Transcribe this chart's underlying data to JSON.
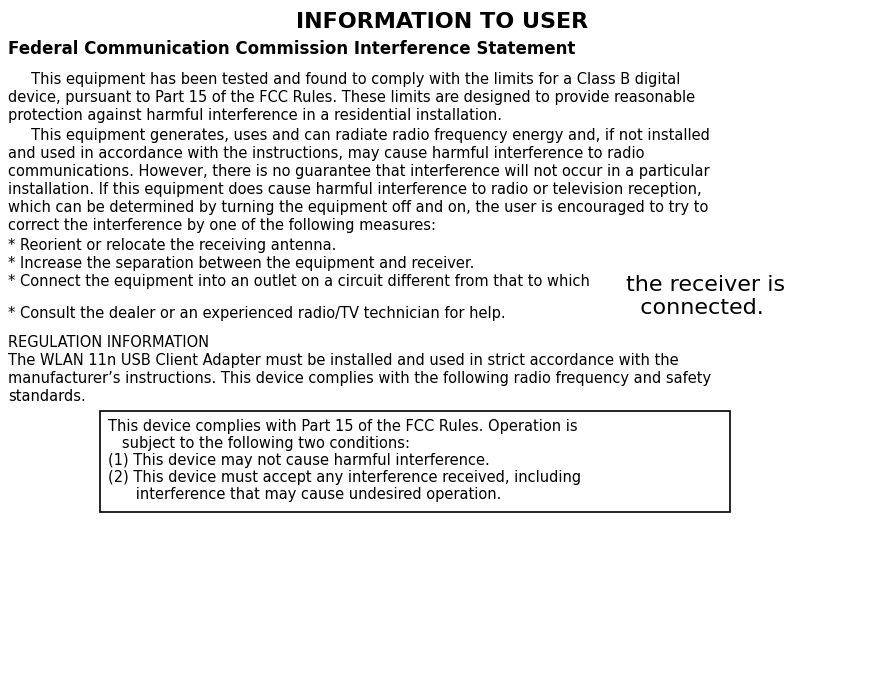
{
  "title": "INFORMATION TO USER",
  "subtitle": "Federal Communication Commission Interference Statement",
  "para1_indent": "     This equipment has been tested and found to comply with the limits for a Class B digital device, pursuant to Part 15 of the FCC Rules. These limits are designed to provide reasonable protection against harmful interference in a residential installation.",
  "para2_indent": "     This equipment generates, uses and can radiate radio frequency energy and, if not installed and used in accordance with the instructions, may cause harmful interference to radio communications. However, there is no guarantee that interference will not occur in a particular installation. If this equipment does cause harmful interference to radio or television reception, which can be determined by turning the equipment off and on, the user is encouraged to try to correct the interference by one of the following measures:",
  "bullet1": "* Reorient or relocate the receiving antenna.",
  "bullet2": "* Increase the separation between the equipment and receiver.",
  "bullet3_normal": "* Connect the equipment into an outlet on a circuit different from that to which ",
  "bullet3_large": "the receiver is\n  connected.",
  "bullet4": "* Consult the dealer or an experienced radio/TV technician for help.",
  "reg_header": "REGULATION INFORMATION",
  "reg_body_line1": "The WLAN 11n USB Client Adapter must be installed and used in strict accordance with the",
  "reg_body_line2": "manufacturer’s instructions. This device complies with the following radio frequency and safety",
  "reg_body_line3": "standards.",
  "box_line1": "This device complies with Part 15 of the FCC Rules. Operation is",
  "box_line2": "   subject to the following two conditions:",
  "box_line3": "(1) This device may not cause harmful interference.",
  "box_line4": "(2) This device must accept any interference received, including",
  "box_line5": "      interference that may cause undesired operation.",
  "bg_color": "#ffffff",
  "text_color": "#000000",
  "font_size_title": 16,
  "font_size_subtitle": 12,
  "font_size_body": 10.5,
  "font_size_large": 16
}
